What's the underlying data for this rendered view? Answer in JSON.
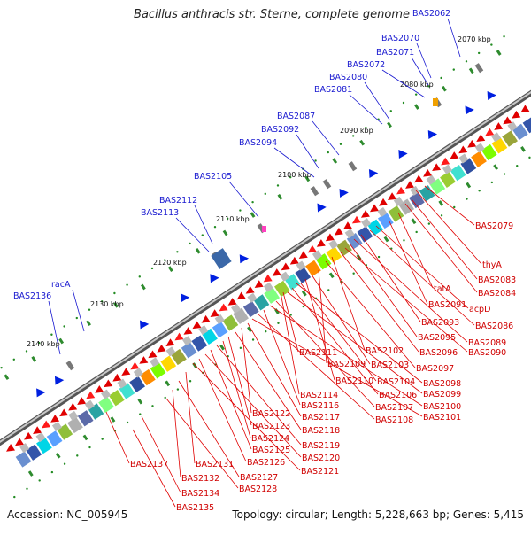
{
  "header": {
    "title": "Bacillus anthracis str. Sterne, complete genome"
  },
  "footer": {
    "accession": "Accession: NC_005945",
    "summary": "Topology: circular; Length: 5,228,663 bp; Genes: 5,415"
  },
  "diagram": {
    "scale_ticks": [
      "2070 kbp",
      "2080 kbp",
      "2090 kbp",
      "2100 kbp",
      "2110 kbp",
      "2120 kbp",
      "2130 kbp",
      "2140 kbp"
    ],
    "top_labels": [
      "BAS2062",
      "BAS2070",
      "BAS2071",
      "BAS2072",
      "BAS2080",
      "BAS2081",
      "BAS2087",
      "BAS2092",
      "BAS2094",
      "BAS2105",
      "BAS2112",
      "BAS2113",
      "racA",
      "BAS2136"
    ],
    "bottom_labels": [
      "BAS2079",
      "thyA",
      "BAS2083",
      "BAS2084",
      "tatA",
      "BAS2091",
      "acpD",
      "BAS2086",
      "BAS2093",
      "BAS2089",
      "BAS2095",
      "BAS2090",
      "BAS2096",
      "BAS2102",
      "BAS2097",
      "BAS2111",
      "BAS2109",
      "BAS2103",
      "BAS2110",
      "BAS2104",
      "BAS2098",
      "BAS2106",
      "BAS2099",
      "BAS2114",
      "BAS2107",
      "BAS2100",
      "BAS2116",
      "BAS2108",
      "BAS2101",
      "BAS2117",
      "BAS2122",
      "BAS2118",
      "BAS2123",
      "BAS2124",
      "BAS2119",
      "BAS2125",
      "BAS2120",
      "BAS2126",
      "BAS2121",
      "BAS2137",
      "BAS2131",
      "BAS2127",
      "BAS2132",
      "BAS2128",
      "BAS2134",
      "BAS2135"
    ]
  }
}
